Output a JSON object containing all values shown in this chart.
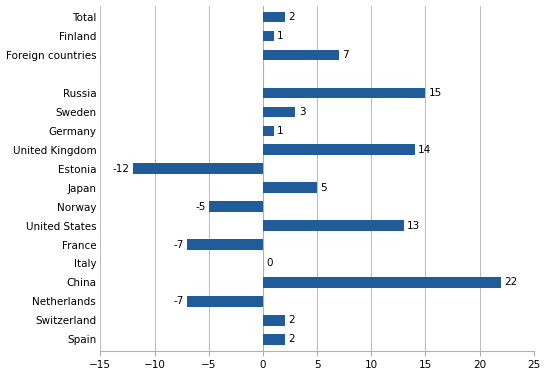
{
  "categories": [
    "Spain",
    "Switzerland",
    "Netherlands",
    "China",
    "Italy",
    "France",
    "United States",
    "Norway",
    "Japan",
    "Estonia",
    "United Kingdom",
    "Germany",
    "Sweden",
    "Russia",
    "",
    "Foreign countries",
    "Finland",
    "Total"
  ],
  "values": [
    2,
    2,
    -7,
    22,
    0,
    -7,
    13,
    -5,
    5,
    -12,
    14,
    1,
    3,
    15,
    null,
    7,
    1,
    2
  ],
  "bar_color": "#1f5c99",
  "xlim": [
    -15,
    25
  ],
  "xticks": [
    -15,
    -10,
    -5,
    0,
    5,
    10,
    15,
    20,
    25
  ],
  "background_color": "#ffffff",
  "grid_color": "#b0b0b0",
  "label_fontsize": 7.5,
  "tick_fontsize": 7.5,
  "bar_height": 0.55
}
